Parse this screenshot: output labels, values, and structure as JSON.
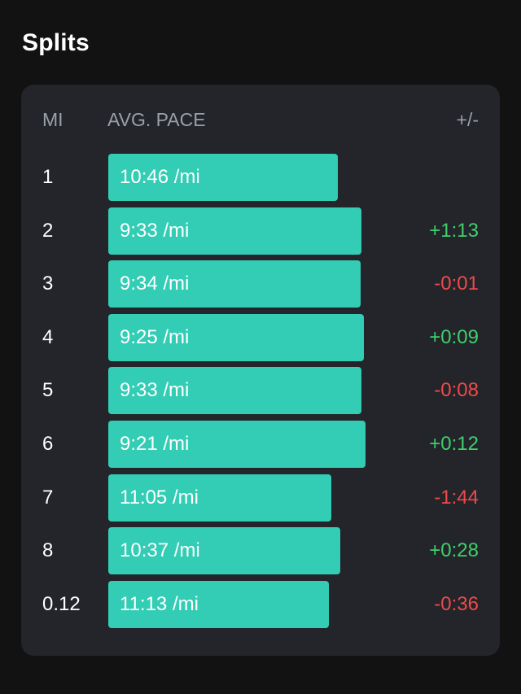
{
  "page": {
    "title": "Splits"
  },
  "table": {
    "headers": {
      "mile": "MI",
      "pace": "AVG. PACE",
      "delta": "+/-"
    },
    "pace_scale_max_seconds": 675,
    "rows": [
      {
        "mile": "1",
        "pace": "10:46 /mi",
        "pace_seconds": 646,
        "delta": "",
        "delta_sign": "none"
      },
      {
        "mile": "2",
        "pace": "9:33 /mi",
        "pace_seconds": 573,
        "delta": "+1:13",
        "delta_sign": "pos"
      },
      {
        "mile": "3",
        "pace": "9:34 /mi",
        "pace_seconds": 574,
        "delta": "-0:01",
        "delta_sign": "neg"
      },
      {
        "mile": "4",
        "pace": "9:25 /mi",
        "pace_seconds": 565,
        "delta": "+0:09",
        "delta_sign": "pos"
      },
      {
        "mile": "5",
        "pace": "9:33 /mi",
        "pace_seconds": 573,
        "delta": "-0:08",
        "delta_sign": "neg"
      },
      {
        "mile": "6",
        "pace": "9:21 /mi",
        "pace_seconds": 561,
        "delta": "+0:12",
        "delta_sign": "pos"
      },
      {
        "mile": "7",
        "pace": "11:05 /mi",
        "pace_seconds": 665,
        "delta": "-1:44",
        "delta_sign": "neg"
      },
      {
        "mile": "8",
        "pace": "10:37 /mi",
        "pace_seconds": 637,
        "delta": "+0:28",
        "delta_sign": "pos"
      },
      {
        "mile": "0.12",
        "pace": "11:13 /mi",
        "pace_seconds": 673,
        "delta": "-0:36",
        "delta_sign": "neg"
      }
    ]
  },
  "colors": {
    "background": "#121212",
    "card": "#23252b",
    "bar": "#33cdb5",
    "positive": "#3ecf6a",
    "negative": "#ef4a4a",
    "header_text": "#9aa0a8"
  }
}
